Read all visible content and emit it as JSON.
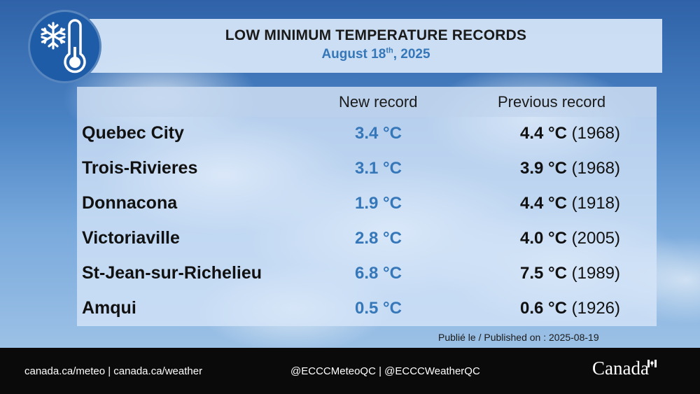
{
  "header": {
    "title": "LOW MINIMUM TEMPERATURE RECORDS",
    "date_main": "August 18",
    "date_suffix": "th",
    "date_year": ", 2025",
    "icon": "snowflake-thermometer-icon"
  },
  "table": {
    "col_new": "New record",
    "col_prev": "Previous record",
    "rows": [
      {
        "city": "Quebec City",
        "new": "3.4 °C",
        "prev_value": "4.4 °C",
        "prev_year": "(1968)"
      },
      {
        "city": "Trois-Rivieres",
        "new": "3.1 °C",
        "prev_value": "3.9 °C",
        "prev_year": "(1968)"
      },
      {
        "city": "Donnacona",
        "new": "1.9 °C",
        "prev_value": "4.4 °C",
        "prev_year": "(1918)"
      },
      {
        "city": "Victoriaville",
        "new": "2.8 °C",
        "prev_value": "4.0 °C",
        "prev_year": "(2005)"
      },
      {
        "city": "St-Jean-sur-Richelieu",
        "new": "6.8 °C",
        "prev_value": "7.5 °C",
        "prev_year": "(1989)"
      },
      {
        "city": "Amqui",
        "new": "0.5 °C",
        "prev_value": "0.6 °C",
        "prev_year": "(1926)"
      }
    ]
  },
  "published": "Publié le / Published on : 2025-08-19",
  "footer": {
    "links": "canada.ca/meteo | canada.ca/weather",
    "social": "@ECCCMeteoQC | @ECCCWeatherQC",
    "wordmark": "Canada",
    "wordmark_icon": "canada-flag-icon"
  },
  "colors": {
    "accent_blue": "#3577b8",
    "badge_blue": "#1f5ca8",
    "footer_bg": "#0a0a0a"
  }
}
